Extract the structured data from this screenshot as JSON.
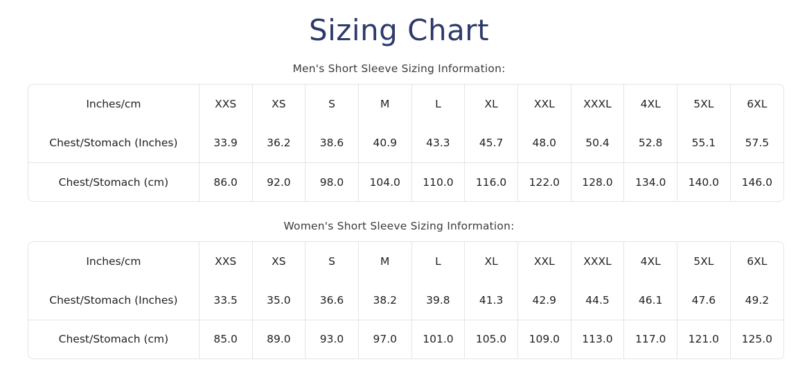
{
  "page_title": "Sizing Chart",
  "colors": {
    "title": "#2d3a6a",
    "border": "#e4e4e4",
    "text": "#212121",
    "heading": "#3a3a3a"
  },
  "tables": [
    {
      "heading": "Men's Short Sleeve Sizing Information:",
      "header": [
        "Inches/cm",
        "XXS",
        "XS",
        "S",
        "M",
        "L",
        "XL",
        "XXL",
        "XXXL",
        "4XL",
        "5XL",
        "6XL"
      ],
      "rows": [
        {
          "label": "Chest/Stomach (Inches)",
          "values": [
            "33.9",
            "36.2",
            "38.6",
            "40.9",
            "43.3",
            "45.7",
            "48.0",
            "50.4",
            "52.8",
            "55.1",
            "57.5"
          ]
        },
        {
          "label": "Chest/Stomach (cm)",
          "values": [
            "86.0",
            "92.0",
            "98.0",
            "104.0",
            "110.0",
            "116.0",
            "122.0",
            "128.0",
            "134.0",
            "140.0",
            "146.0"
          ]
        }
      ]
    },
    {
      "heading": "Women's Short Sleeve Sizing Information:",
      "header": [
        "Inches/cm",
        "XXS",
        "XS",
        "S",
        "M",
        "L",
        "XL",
        "XXL",
        "XXXL",
        "4XL",
        "5XL",
        "6XL"
      ],
      "rows": [
        {
          "label": "Chest/Stomach (Inches)",
          "values": [
            "33.5",
            "35.0",
            "36.6",
            "38.2",
            "39.8",
            "41.3",
            "42.9",
            "44.5",
            "46.1",
            "47.6",
            "49.2"
          ]
        },
        {
          "label": "Chest/Stomach (cm)",
          "values": [
            "85.0",
            "89.0",
            "93.0",
            "97.0",
            "101.0",
            "105.0",
            "109.0",
            "113.0",
            "117.0",
            "121.0",
            "125.0"
          ]
        }
      ]
    }
  ]
}
